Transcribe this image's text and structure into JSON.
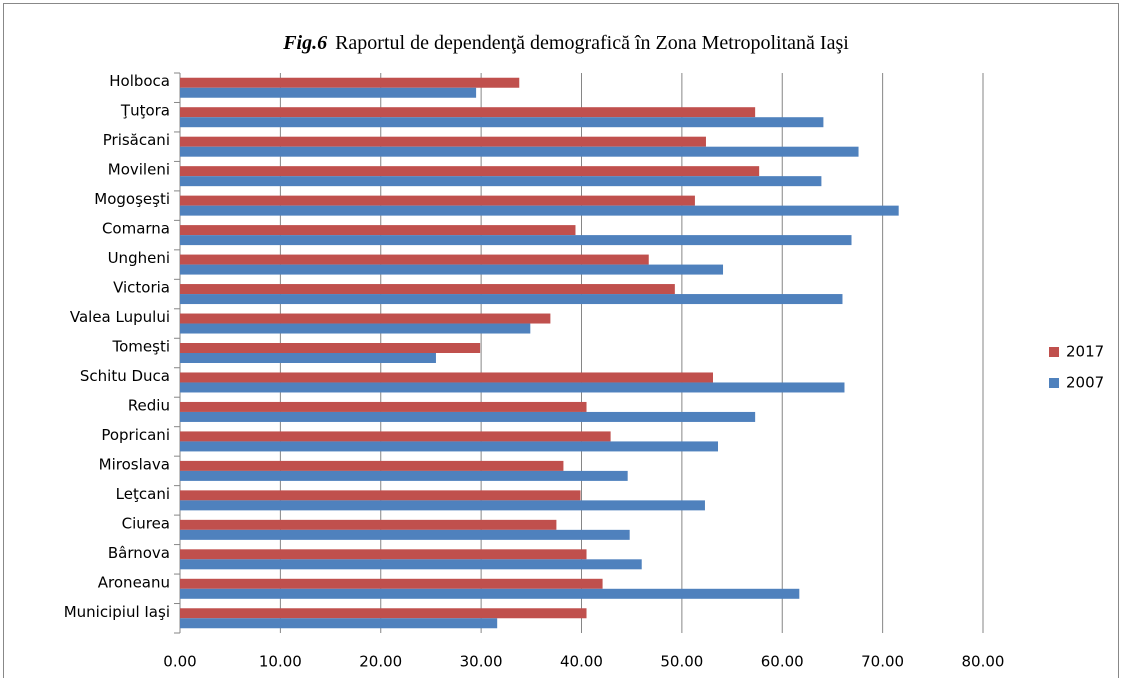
{
  "chart_data": {
    "type": "bar",
    "orientation": "horizontal",
    "figure_label": "Fig.6",
    "title": "Raportul de dependenţă demografică în Zona Metropolitană Iaşi",
    "categories": [
      "Holboca",
      "Ţuţora",
      "Prisăcani",
      "Movileni",
      "Mogoşeşti",
      "Comarna",
      "Ungheni",
      "Victoria",
      "Valea Lupului",
      "Tomeşti",
      "Schitu Duca",
      "Rediu",
      "Popricani",
      "Miroslava",
      "Leţcani",
      "Ciurea",
      "Bârnova",
      "Aroneanu",
      "Municipiul Iaşi"
    ],
    "series": [
      {
        "name": "2017",
        "color": "#c0504d",
        "values": [
          33.8,
          57.3,
          52.4,
          57.7,
          51.3,
          39.4,
          46.7,
          49.3,
          36.9,
          29.9,
          53.1,
          40.5,
          42.9,
          38.2,
          39.9,
          37.5,
          40.5,
          42.1,
          40.5
        ]
      },
      {
        "name": "2007",
        "color": "#4f81bd",
        "values": [
          29.5,
          64.1,
          67.6,
          63.9,
          71.6,
          66.9,
          54.1,
          66.0,
          34.9,
          25.5,
          66.2,
          57.3,
          53.6,
          44.6,
          52.3,
          44.8,
          46.0,
          61.7,
          31.6
        ]
      }
    ],
    "xlim": [
      0,
      80
    ],
    "xticks": [
      {
        "value": 0,
        "label": "0.00"
      },
      {
        "value": 10,
        "label": "10.00"
      },
      {
        "value": 20,
        "label": "20.00"
      },
      {
        "value": 30,
        "label": "30.00"
      },
      {
        "value": 40,
        "label": "40.00"
      },
      {
        "value": 50,
        "label": "50.00"
      },
      {
        "value": 60,
        "label": "60.00"
      },
      {
        "value": 70,
        "label": "70.00"
      },
      {
        "value": 80,
        "label": "80.00"
      }
    ],
    "grid": true,
    "legend": "right"
  }
}
